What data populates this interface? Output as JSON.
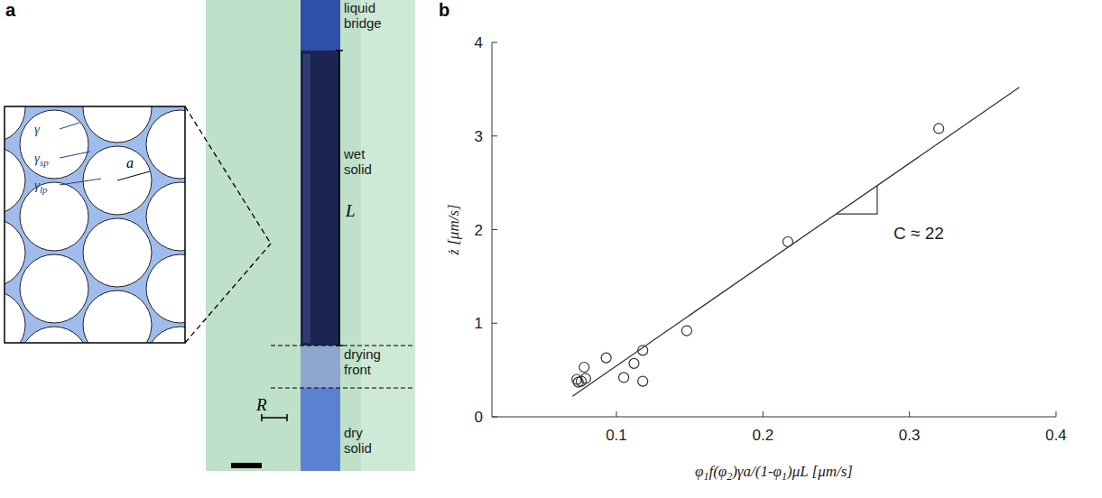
{
  "letters": [
    "a",
    "b"
  ],
  "panel_a": {
    "labels": [
      {
        "text": "liquid bridge"
      },
      {
        "text": "wet solid"
      },
      {
        "text": "drying front"
      },
      {
        "text": "dry solid"
      }
    ],
    "length": "L",
    "radius": "R",
    "inset": [
      {
        "text": "γ"
      },
      {
        "text": "γ",
        "sub": "sp"
      },
      {
        "text": "γ",
        "sub": "lp"
      }
    ],
    "particle_radius": "a"
  },
  "chart_data": {
    "type": "scatter",
    "x_label": [
      {
        "text": "φ"
      },
      {
        "text": "1",
        "sub": true
      },
      {
        "text": "f(φ"
      },
      {
        "text": "2",
        "sub": true
      },
      {
        "text": ")γa/(1-φ"
      },
      {
        "text": "1",
        "sub": true
      },
      {
        "text": ")μL [μm/s]"
      }
    ],
    "y_label": [
      {
        "text": "ż [μm/s]"
      }
    ],
    "xlim": [
      0.015,
      0.4
    ],
    "ylim": [
      0,
      4
    ],
    "xticks": [
      0.1,
      0.2,
      0.3,
      0.4
    ],
    "yticks": [
      0,
      1,
      2,
      3,
      4
    ],
    "grid": false,
    "series": [
      {
        "type": "scatter",
        "marker": "circle",
        "color": "#333333",
        "x": [
          0.32,
          0.217,
          0.148,
          0.118,
          0.118,
          0.112,
          0.105,
          0.093,
          0.078,
          0.076,
          0.073,
          0.079,
          0.074
        ],
        "values": [
          3.08,
          1.87,
          0.92,
          0.71,
          0.38,
          0.57,
          0.42,
          0.63,
          0.53,
          0.38,
          0.4,
          0.41,
          0.37
        ]
      },
      {
        "type": "line",
        "line_style": "solid",
        "color": "#333333",
        "x": [
          0.07,
          0.375
        ],
        "values": [
          0.22,
          3.52
        ]
      }
    ],
    "annotations": [
      {
        "text": "C ≈ 22",
        "x": [
          0.25,
          0.278
        ]
      }
    ]
  }
}
